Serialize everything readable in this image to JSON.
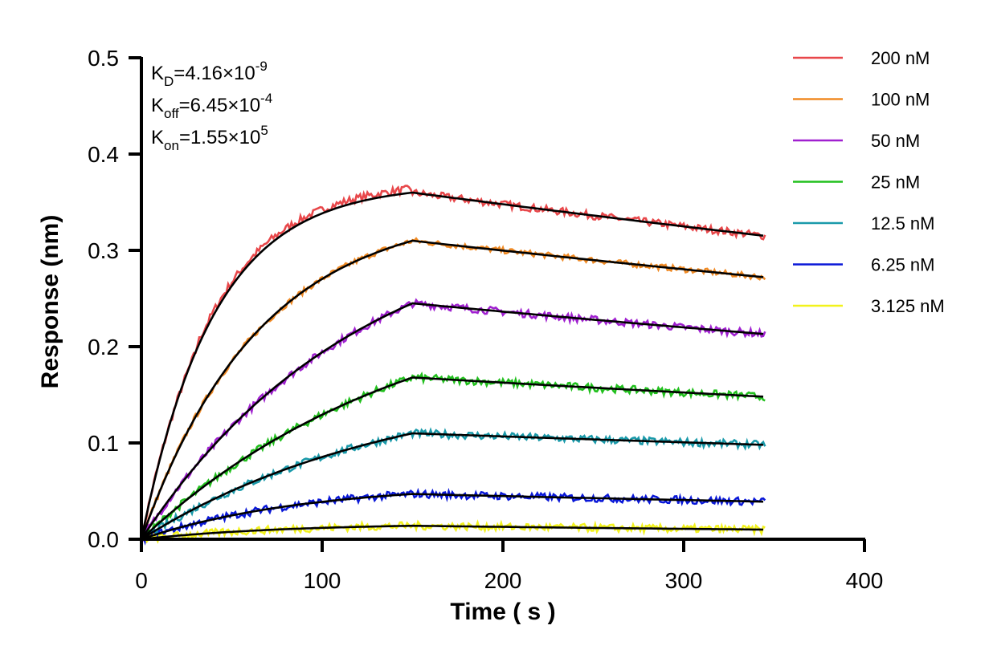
{
  "chart_data": {
    "type": "line",
    "xlabel": "Time ( s )",
    "ylabel": "Response (nm)",
    "xlim": [
      0,
      400
    ],
    "ylim": [
      0,
      0.5
    ],
    "x_ticks": [
      "0",
      "100",
      "200",
      "300",
      "400"
    ],
    "y_ticks": [
      "0.0",
      "0.1",
      "0.2",
      "0.3",
      "0.4",
      "0.5"
    ],
    "grid": false,
    "legend_position": "top-right",
    "annotations": [
      {
        "main": "K",
        "sub": "D",
        "rest": "=4.16×10",
        "sup": "-9"
      },
      {
        "main": "K",
        "sub": "off",
        "rest": "=6.45×10",
        "sup": "-4"
      },
      {
        "main": "K",
        "sub": "on",
        "rest": "=1.55×10",
        "sup": "5"
      }
    ],
    "association_end": 150,
    "time_end": 345,
    "fit_color": "#000000",
    "series": [
      {
        "name": "200 nM",
        "color": "#e8474a",
        "peak": 0.36,
        "end": 0.315,
        "tau": 40,
        "noise": 0.004
      },
      {
        "name": "100 nM",
        "color": "#f08a24",
        "peak": 0.31,
        "end": 0.272,
        "tau": 65,
        "noise": 0.003
      },
      {
        "name": "50 nM",
        "color": "#a020d0",
        "peak": 0.245,
        "end": 0.213,
        "tau": 120,
        "noise": 0.004
      },
      {
        "name": "25 nM",
        "color": "#22c01e",
        "peak": 0.168,
        "end": 0.148,
        "tau": 150,
        "noise": 0.004
      },
      {
        "name": "12.5 nM",
        "color": "#1a9aaa",
        "peak": 0.11,
        "end": 0.098,
        "tau": 140,
        "noise": 0.004
      },
      {
        "name": "6.25 nM",
        "color": "#0a18d8",
        "peak": 0.047,
        "end": 0.039,
        "tau": 90,
        "noise": 0.004
      },
      {
        "name": "3.125 nM",
        "color": "#f2f21c",
        "peak": 0.014,
        "end": 0.01,
        "tau": 80,
        "noise": 0.004
      }
    ]
  }
}
